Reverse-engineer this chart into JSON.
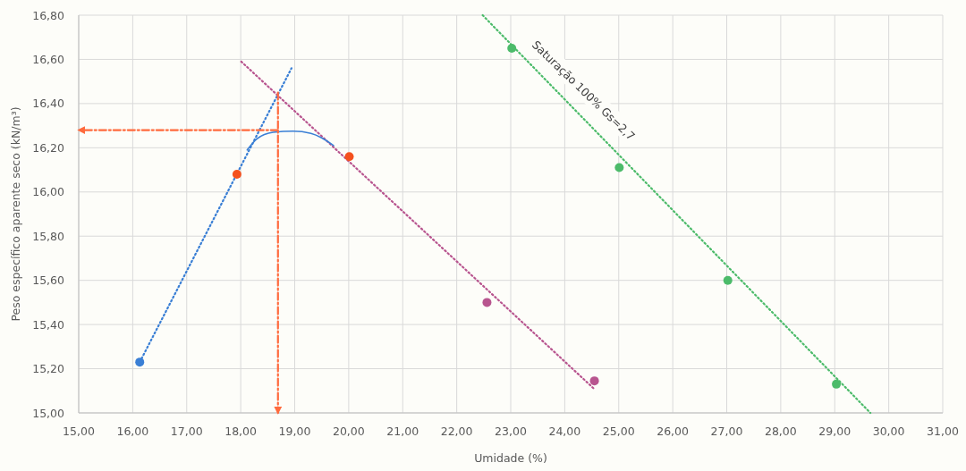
{
  "chart_data": {
    "type": "scatter",
    "xlabel": "Umidade (%)",
    "ylabel": "Peso específico aparente seco (kN/m³)",
    "xlim": [
      15,
      31
    ],
    "xticks": [
      {
        "value": 15,
        "label": "15,00"
      },
      {
        "value": 16,
        "label": "16,00"
      },
      {
        "value": 17,
        "label": "17,00"
      },
      {
        "value": 18,
        "label": "18,00"
      },
      {
        "value": 19,
        "label": "19,00"
      },
      {
        "value": 20,
        "label": "20,00"
      },
      {
        "value": 21,
        "label": "21,00"
      },
      {
        "value": 22,
        "label": "22,00"
      },
      {
        "value": 23,
        "label": "23,00"
      },
      {
        "value": 24,
        "label": "24,00"
      },
      {
        "value": 25,
        "label": "25,00"
      },
      {
        "value": 26,
        "label": "26,00"
      },
      {
        "value": 27,
        "label": "27,00"
      },
      {
        "value": 28,
        "label": "28,00"
      },
      {
        "value": 29,
        "label": "29,00"
      },
      {
        "value": 30,
        "label": "30,00"
      },
      {
        "value": 31,
        "label": "31,00"
      }
    ],
    "ylim": [
      15,
      16.8
    ],
    "yticks": [
      {
        "value": 15,
        "label": "15,00"
      },
      {
        "value": 15.2,
        "label": "15,20"
      },
      {
        "value": 15.4,
        "label": "15,40"
      },
      {
        "value": 15.6,
        "label": "15,60"
      },
      {
        "value": 15.8,
        "label": "15,80"
      },
      {
        "value": 16,
        "label": "16,00"
      },
      {
        "value": 16.2,
        "label": "16,20"
      },
      {
        "value": 16.4,
        "label": "16,40"
      },
      {
        "value": 16.6,
        "label": "16,60"
      },
      {
        "value": 16.8,
        "label": "16,80"
      }
    ],
    "grid": true,
    "series": [
      {
        "type": "line",
        "color": "#3a7fd5",
        "line_style": "dotted",
        "x": [
          16.13,
          18.94
        ],
        "values": [
          15.23,
          16.56
        ]
      },
      {
        "type": "line",
        "color": "#b8558f",
        "line_style": "dotted",
        "x": [
          18.01,
          24.54
        ],
        "values": [
          16.59,
          15.11
        ]
      },
      {
        "type": "line",
        "color": "#4cbb6a",
        "line_style": "dotted",
        "x": [
          22.48,
          29.66
        ],
        "values": [
          16.8,
          15.0
        ]
      },
      {
        "type": "line",
        "color": "#3a7fd5",
        "line_style": "solid",
        "x": [
          18.12,
          18.3,
          18.6,
          18.97,
          19.3,
          19.5,
          19.72
        ],
        "values": [
          16.19,
          16.24,
          16.27,
          16.275,
          16.265,
          16.245,
          16.21
        ]
      },
      {
        "type": "line",
        "color": "#ff6a3d",
        "line_style": "dashed",
        "x": [
          18.69,
          15.0
        ],
        "values": [
          16.28,
          16.28
        ]
      },
      {
        "type": "line",
        "color": "#ff6a3d",
        "line_style": "dashed",
        "x": [
          18.69,
          18.69
        ],
        "values": [
          16.45,
          15.0
        ]
      },
      {
        "color": "#3a7fd5",
        "marker": "circle",
        "x": [
          16.13
        ],
        "values": [
          15.23
        ]
      },
      {
        "color": "#f4511e",
        "marker": "circle",
        "x": [
          17.93,
          20.01
        ],
        "values": [
          16.08,
          16.16
        ]
      },
      {
        "color": "#b8558f",
        "marker": "circle",
        "x": [
          22.56,
          24.55
        ],
        "values": [
          15.5,
          15.145
        ]
      },
      {
        "color": "#4cbb6a",
        "marker": "circle",
        "x": [
          23.02,
          25.01,
          27.02,
          29.03
        ],
        "values": [
          16.65,
          16.11,
          15.6,
          15.13
        ]
      }
    ],
    "annotations": [
      "Saturação 100% Gs=2,7"
    ]
  }
}
